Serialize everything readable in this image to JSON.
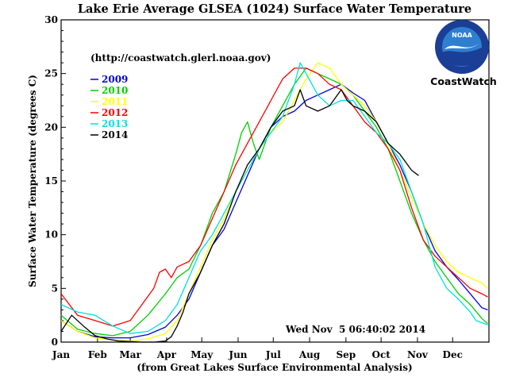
{
  "chart_data": {
    "type": "line",
    "title": "Lake Erie Average GLSEA (1024) Surface Water Temperature",
    "ylabel": "Surface Water Temperature (degrees C)",
    "xlabel": "(from Great Lakes Surface Environmental Analysis)",
    "url_note": "(http://coastwatch.glerl.noaa.gov)",
    "timestamp": "Wed Nov  5 06:40:02 2014",
    "ylim": [
      0,
      30
    ],
    "xlim": [
      1,
      366
    ],
    "x_unit": "day of year",
    "yticks": [
      0,
      5,
      10,
      15,
      20,
      25,
      30
    ],
    "ytick_labels": [
      "0",
      "5",
      "10",
      "15",
      "20",
      "25",
      "30"
    ],
    "xticks": [
      1,
      32,
      60,
      91,
      121,
      152,
      182,
      213,
      244,
      274,
      305,
      335
    ],
    "xtick_labels": [
      "Jan",
      "Feb",
      "Mar",
      "Apr",
      "May",
      "Jun",
      "Jul",
      "Aug",
      "Sep",
      "Oct",
      "Nov",
      "Dec"
    ],
    "legend_position": "top-left",
    "grid": false,
    "series": [
      {
        "name": "2009",
        "color": "#0000e0",
        "x": [
          1,
          15,
          30,
          45,
          60,
          75,
          90,
          100,
          110,
          120,
          130,
          140,
          150,
          160,
          170,
          180,
          190,
          200,
          210,
          220,
          230,
          240,
          250,
          260,
          270,
          280,
          290,
          300,
          310,
          320,
          330,
          340,
          350,
          360,
          365
        ],
        "y": [
          2.0,
          1.0,
          0.5,
          0.4,
          0.4,
          0.7,
          1.4,
          2.5,
          4.0,
          6.5,
          9.0,
          10.5,
          13.0,
          15.5,
          18.0,
          20.0,
          21.0,
          21.5,
          22.5,
          23.0,
          23.5,
          24.0,
          23.2,
          22.5,
          20.5,
          18.5,
          16.5,
          14.0,
          11.0,
          8.5,
          7.0,
          5.8,
          4.5,
          3.2,
          3.0
        ]
      },
      {
        "name": "2010",
        "color": "#00d000",
        "x": [
          1,
          15,
          30,
          45,
          60,
          75,
          90,
          100,
          110,
          120,
          130,
          140,
          150,
          155,
          160,
          165,
          170,
          175,
          180,
          190,
          200,
          210,
          220,
          230,
          240,
          250,
          260,
          270,
          280,
          290,
          300,
          310,
          320,
          330,
          340,
          350,
          360,
          365
        ],
        "y": [
          2.5,
          1.2,
          0.8,
          0.6,
          1.0,
          2.5,
          4.5,
          6.0,
          6.8,
          9.0,
          12.0,
          14.0,
          17.5,
          19.5,
          20.5,
          18.5,
          17.0,
          18.5,
          20.0,
          22.0,
          24.0,
          25.5,
          25.0,
          24.5,
          24.0,
          23.0,
          21.5,
          20.0,
          18.0,
          15.0,
          12.0,
          9.5,
          7.5,
          6.0,
          4.5,
          3.5,
          2.2,
          1.7
        ]
      },
      {
        "name": "2011",
        "color": "#ffff00",
        "x": [
          1,
          15,
          30,
          45,
          60,
          75,
          90,
          100,
          110,
          120,
          130,
          140,
          150,
          160,
          170,
          180,
          190,
          200,
          210,
          220,
          230,
          240,
          250,
          260,
          270,
          280,
          290,
          300,
          310,
          320,
          330,
          340,
          350,
          360,
          365
        ],
        "y": [
          2.0,
          1.0,
          0.4,
          0.2,
          0.1,
          0.3,
          0.8,
          2.0,
          4.5,
          7.0,
          9.5,
          11.5,
          14.0,
          16.0,
          18.0,
          19.5,
          20.5,
          22.5,
          24.5,
          26.0,
          25.5,
          24.0,
          23.0,
          22.0,
          20.5,
          18.5,
          16.0,
          13.5,
          11.0,
          9.0,
          7.5,
          6.5,
          6.0,
          5.5,
          5.0
        ]
      },
      {
        "name": "2012",
        "color": "#ff0000",
        "x": [
          1,
          15,
          30,
          45,
          60,
          70,
          80,
          85,
          90,
          95,
          100,
          110,
          120,
          130,
          140,
          150,
          160,
          170,
          180,
          190,
          200,
          210,
          220,
          230,
          240,
          250,
          260,
          270,
          280,
          290,
          300,
          310,
          320,
          330,
          340,
          350,
          360,
          365
        ],
        "y": [
          4.5,
          2.5,
          2.0,
          1.5,
          2.0,
          3.5,
          5.0,
          6.5,
          6.8,
          6.0,
          7.0,
          7.5,
          9.0,
          11.5,
          14.0,
          16.5,
          18.5,
          20.5,
          22.5,
          24.5,
          25.5,
          25.5,
          25.0,
          24.0,
          23.5,
          22.0,
          20.5,
          19.5,
          18.0,
          16.0,
          12.5,
          9.5,
          8.0,
          7.0,
          6.0,
          5.0,
          4.5,
          4.2
        ]
      },
      {
        "name": "2013",
        "color": "#00e0e0",
        "x": [
          1,
          15,
          30,
          45,
          60,
          75,
          90,
          100,
          110,
          120,
          130,
          140,
          150,
          160,
          170,
          180,
          190,
          200,
          205,
          210,
          220,
          230,
          240,
          250,
          260,
          270,
          280,
          290,
          300,
          310,
          320,
          330,
          340,
          350,
          355,
          360,
          365
        ],
        "y": [
          3.5,
          2.8,
          2.5,
          1.5,
          0.8,
          1.0,
          2.0,
          3.5,
          6.0,
          8.5,
          10.0,
          12.0,
          14.0,
          16.0,
          18.0,
          19.5,
          21.0,
          24.0,
          26.0,
          25.0,
          23.0,
          22.0,
          22.5,
          22.5,
          21.0,
          19.5,
          18.5,
          17.0,
          14.0,
          11.0,
          7.0,
          5.0,
          4.0,
          2.8,
          2.0,
          1.8,
          1.6
        ]
      },
      {
        "name": "2014",
        "color": "#000000",
        "x": [
          1,
          10,
          20,
          30,
          40,
          50,
          60,
          70,
          80,
          90,
          95,
          100,
          105,
          110,
          120,
          130,
          140,
          150,
          160,
          170,
          180,
          190,
          200,
          205,
          210,
          220,
          230,
          240,
          245,
          250,
          260,
          270,
          280,
          290,
          300,
          306
        ],
        "y": [
          1.0,
          2.5,
          1.5,
          0.6,
          0.3,
          0.1,
          0.05,
          0.0,
          0.0,
          0.1,
          0.5,
          1.5,
          2.8,
          4.5,
          6.5,
          9.0,
          11.0,
          14.0,
          16.5,
          18.0,
          20.0,
          21.5,
          22.0,
          23.5,
          22.0,
          21.5,
          22.0,
          23.5,
          22.5,
          22.0,
          21.5,
          20.5,
          18.5,
          17.5,
          16.0,
          15.5
        ]
      }
    ]
  },
  "logo": {
    "agency_text": "NOAA",
    "caption": "CoastWatch",
    "colors": {
      "outer": "#1b3f96",
      "sky": "#2f7fd0",
      "bird": "#ffffff"
    }
  },
  "colors": {
    "axes": "#000000",
    "background": "#ffffff"
  }
}
